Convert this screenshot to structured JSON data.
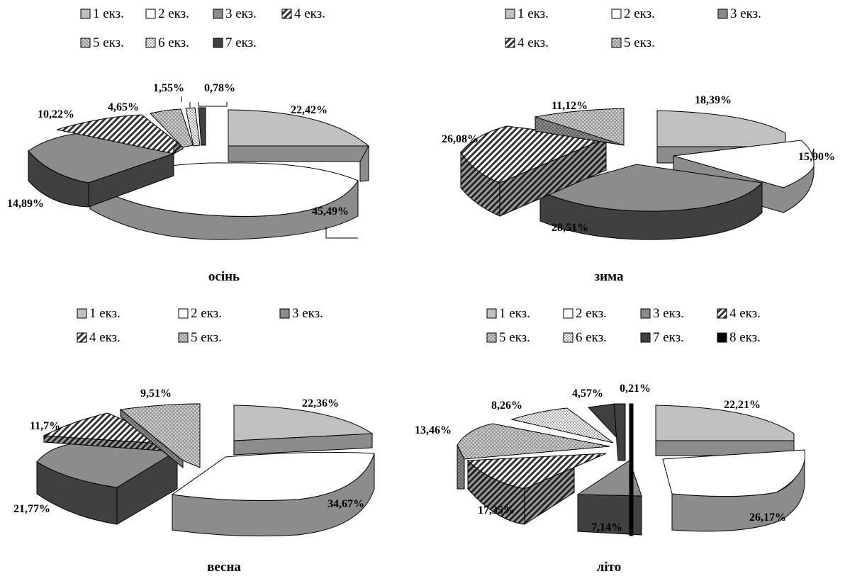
{
  "colors": {
    "c1": "#c0c0c0",
    "c2": "#ffffff",
    "c3": "#8c8c8c",
    "c4": "hatch-diagonal",
    "c5": "#d0d0d0-crosshatch",
    "c6": "dots",
    "c7": "#404040",
    "c8": "#000000"
  },
  "chart_data": [
    {
      "type": "pie",
      "title": "осінь",
      "legend": [
        "1 екз.",
        "2 екз.",
        "3 екз.",
        "4 екз.",
        "5 екз.",
        "6 екз.",
        "7 екз."
      ],
      "legend_rows": [
        [
          0,
          1,
          2,
          3
        ],
        [
          4,
          5,
          6
        ]
      ],
      "values": [
        22.42,
        45.49,
        14.89,
        10.22,
        4.65,
        1.55,
        0.78
      ],
      "labels": [
        "22,42%",
        "45,49%",
        "14,89%",
        "10,22%",
        "4,65%",
        "1,55%",
        "0,78%"
      ],
      "exploded": true
    },
    {
      "type": "pie",
      "title": "зима",
      "legend": [
        "1 екз.",
        "2 екз.",
        "3 екз.",
        "4 екз.",
        "5 екз."
      ],
      "legend_rows": [
        [
          0,
          1,
          2
        ],
        [
          3,
          4
        ]
      ],
      "values": [
        18.39,
        15.9,
        28.51,
        26.08,
        11.12
      ],
      "labels": [
        "18,39%",
        "15,90%",
        "28,51%",
        "26,08%",
        "11,12%"
      ],
      "exploded": true
    },
    {
      "type": "pie",
      "title": "весна",
      "legend": [
        "1 екз.",
        "2 екз.",
        "3 екз.",
        "4 екз.",
        "5 екз."
      ],
      "legend_rows": [
        [
          0,
          1,
          2
        ],
        [
          3,
          4
        ]
      ],
      "values": [
        22.36,
        34.67,
        21.77,
        11.7,
        9.51
      ],
      "labels": [
        "22,36%",
        "34,67%",
        "21,77%",
        "11,7%",
        "9,51%"
      ],
      "exploded": true
    },
    {
      "type": "pie",
      "title": "літо",
      "legend": [
        "1 екз.",
        "2 екз.",
        "3 екз.",
        "4 екз.",
        "5 екз.",
        "6 екз.",
        "7 екз.",
        "8 екз."
      ],
      "legend_rows": [
        [
          0,
          1,
          2,
          3
        ],
        [
          4,
          5,
          6,
          7
        ]
      ],
      "values": [
        22.21,
        26.17,
        7.14,
        17.35,
        13.46,
        8.26,
        4.57,
        0.21
      ],
      "labels": [
        "22,21%",
        "26,17%",
        "7,14%",
        "17,35%",
        "13,46%",
        "8,26%",
        "4,57%",
        "0,21%"
      ],
      "exploded": true
    }
  ]
}
